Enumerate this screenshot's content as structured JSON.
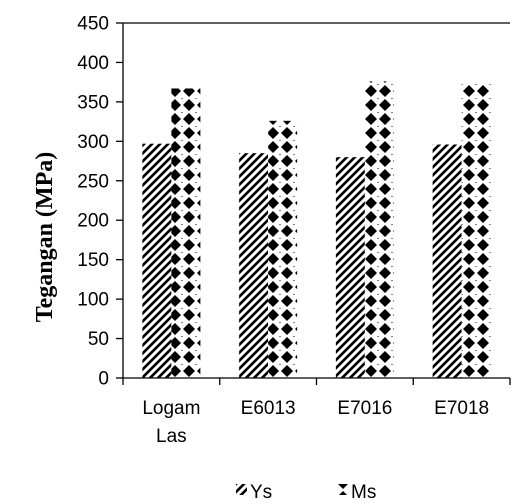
{
  "chart_data": {
    "type": "bar",
    "title": "",
    "xlabel": "",
    "ylabel": "Tegangan (MPa)",
    "ylim": [
      0,
      450
    ],
    "yticks": [
      0,
      50,
      100,
      150,
      200,
      250,
      300,
      350,
      400,
      450
    ],
    "categories": [
      [
        "Logam",
        "Las"
      ],
      [
        "E6013"
      ],
      [
        "E7016"
      ],
      [
        "E7018"
      ]
    ],
    "series": [
      {
        "name": "Ys",
        "pattern": "diagonal-stripes",
        "values": [
          297,
          285,
          280,
          296
        ]
      },
      {
        "name": "Ms",
        "pattern": "diamonds",
        "values": [
          367,
          326,
          376,
          374
        ]
      }
    ],
    "legend_position": "bottom",
    "grid": false,
    "colors": {
      "ink": "#000000",
      "background": "#ffffff"
    }
  }
}
